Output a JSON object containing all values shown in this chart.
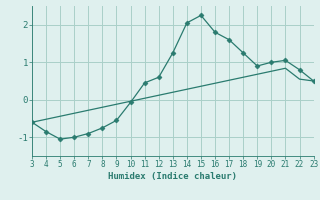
{
  "x": [
    3,
    4,
    5,
    6,
    7,
    8,
    9,
    10,
    11,
    12,
    13,
    14,
    15,
    16,
    17,
    18,
    19,
    20,
    21,
    22,
    23
  ],
  "y_curve": [
    -0.6,
    -0.85,
    -1.05,
    -1.0,
    -0.9,
    -0.75,
    -0.55,
    -0.07,
    0.45,
    0.6,
    1.25,
    2.05,
    2.25,
    1.8,
    1.6,
    1.25,
    0.9,
    1.0,
    1.05,
    0.8,
    0.5
  ],
  "y_line": [
    -0.6,
    -0.52,
    -0.44,
    -0.36,
    -0.28,
    -0.2,
    -0.12,
    -0.04,
    0.04,
    0.12,
    0.2,
    0.28,
    0.36,
    0.44,
    0.52,
    0.6,
    0.68,
    0.76,
    0.84,
    0.55,
    0.5
  ],
  "line_color": "#2a7b6f",
  "bg_color": "#dff0ee",
  "grid_color": "#aacfc8",
  "xlabel": "Humidex (Indice chaleur)",
  "xlim": [
    3,
    23
  ],
  "ylim": [
    -1.5,
    2.5
  ],
  "yticks": [
    -1,
    0,
    1,
    2
  ],
  "xticks": [
    3,
    4,
    5,
    6,
    7,
    8,
    9,
    10,
    11,
    12,
    13,
    14,
    15,
    16,
    17,
    18,
    19,
    20,
    21,
    22,
    23
  ]
}
